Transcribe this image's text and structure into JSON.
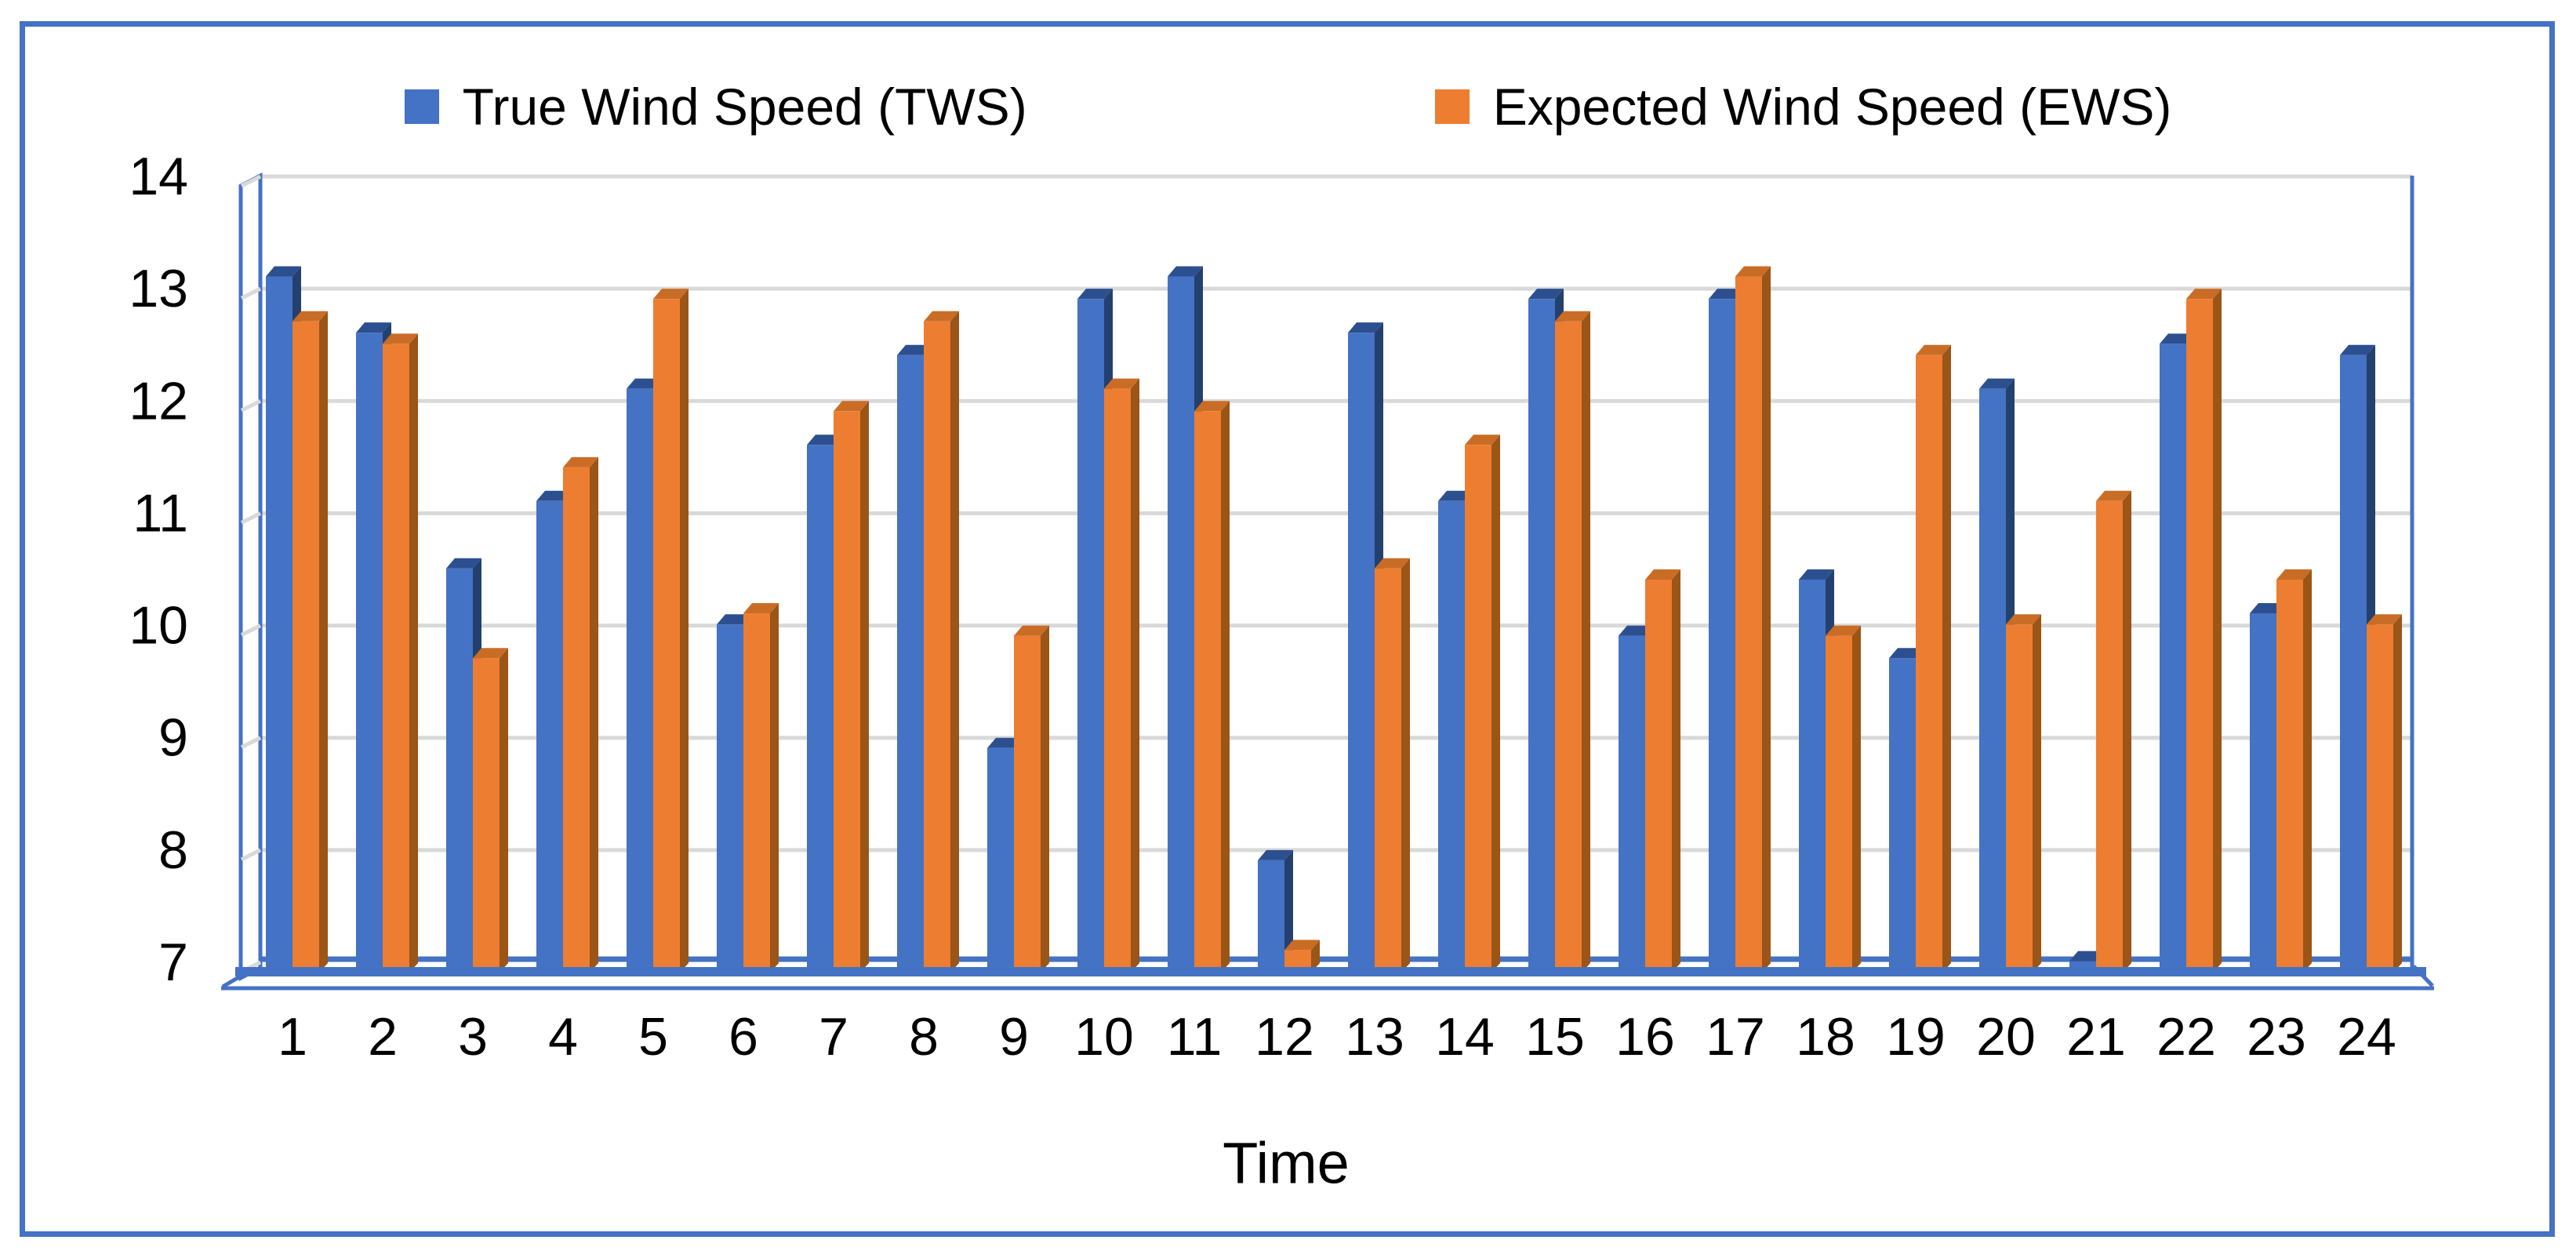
{
  "chart_data": {
    "type": "bar",
    "title": "",
    "xlabel": "Time",
    "ylabel": "",
    "categories": [
      1,
      2,
      3,
      4,
      5,
      6,
      7,
      8,
      9,
      10,
      11,
      12,
      13,
      14,
      15,
      16,
      17,
      18,
      19,
      20,
      21,
      22,
      23,
      24
    ],
    "series": [
      {
        "name": "True Wind Speed (TWS)",
        "color": "#4472C4",
        "side_color": "#24406E",
        "top_color": "#2C508F",
        "values": [
          13.2,
          12.7,
          10.6,
          11.2,
          12.2,
          10.1,
          11.7,
          12.5,
          9.0,
          13.0,
          13.2,
          8.0,
          12.7,
          11.2,
          13.0,
          10.0,
          13.0,
          10.5,
          9.8,
          12.2,
          7.1,
          12.6,
          10.2,
          12.5
        ]
      },
      {
        "name": "Expected Wind Speed (EWS)",
        "color": "#ED7D31",
        "side_color": "#9A5517",
        "top_color": "#C96D26",
        "values": [
          12.8,
          12.6,
          9.8,
          11.5,
          13.0,
          10.2,
          12.0,
          12.8,
          10.0,
          12.2,
          12.0,
          7.2,
          10.6,
          11.7,
          12.8,
          10.5,
          13.2,
          10.0,
          12.5,
          10.1,
          11.2,
          13.0,
          10.5,
          10.1
        ]
      }
    ],
    "ylim": [
      7,
      14
    ],
    "yticks": [
      7,
      8,
      9,
      10,
      11,
      12,
      13,
      14
    ],
    "grid": true,
    "legend_position": "top"
  },
  "style": {
    "frame_color": "#4472C4",
    "axis_color": "#4472C4",
    "gridline_color": "#D9D9D9",
    "text_color": "#000000",
    "background": "#FFFFFF"
  }
}
